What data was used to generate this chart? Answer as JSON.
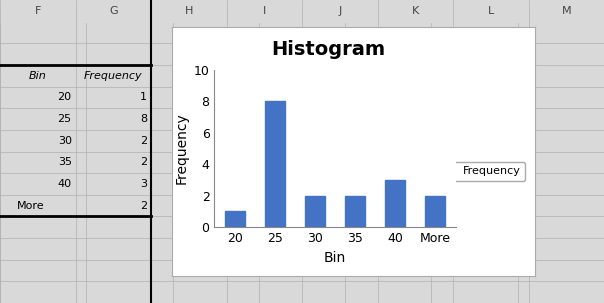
{
  "title": "Histogram",
  "categories": [
    "20",
    "25",
    "30",
    "35",
    "40",
    "More"
  ],
  "values": [
    1,
    8,
    2,
    2,
    3,
    2
  ],
  "bar_color": "#4472C4",
  "xlabel": "Bin",
  "ylabel": "Frequency",
  "ylim": [
    0,
    10
  ],
  "yticks": [
    0,
    2,
    4,
    6,
    8,
    10
  ],
  "legend_label": "Frequency",
  "bg_color": "#ffffff",
  "grid_color": "#d0d0d0",
  "title_fontsize": 14,
  "axis_label_fontsize": 10,
  "tick_fontsize": 9
}
